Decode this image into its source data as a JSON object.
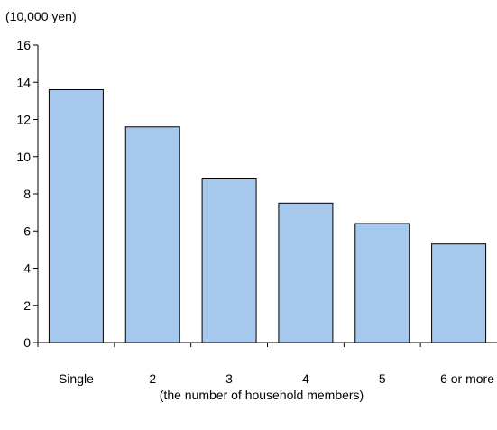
{
  "chart_data": {
    "type": "bar",
    "unit_label": "(10,000 yen)",
    "xlabel": "(the number of household members)",
    "ylabel": "",
    "categories": [
      "Single",
      "2",
      "3",
      "4",
      "5",
      "6 or more"
    ],
    "values": [
      13.6,
      11.6,
      8.8,
      7.5,
      6.4,
      5.3
    ],
    "ylim": [
      0,
      16
    ],
    "yticks": [
      0,
      2,
      4,
      6,
      8,
      10,
      12,
      14,
      16
    ],
    "grid": false,
    "legend": "none",
    "colors": {
      "bar_fill": "#a5c8ec",
      "bar_stroke": "#000000",
      "axis": "#000000"
    }
  }
}
